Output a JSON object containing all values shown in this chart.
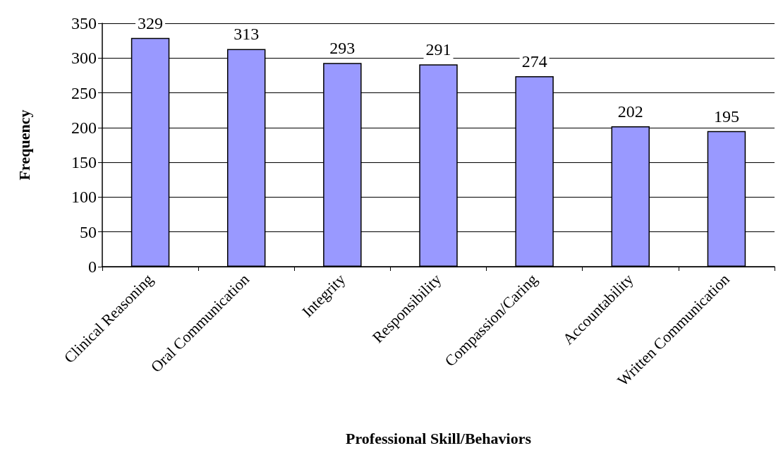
{
  "chart_data": {
    "type": "bar",
    "xlabel": "Professional Skill/Behaviors",
    "ylabel": "Frequency",
    "categories": [
      "Clinical Reasoning",
      "Oral Communication",
      "Integrity",
      "Responsibility",
      "Compassion/Caring",
      "Accountability",
      "Written Communication"
    ],
    "values": [
      329,
      313,
      293,
      291,
      274,
      202,
      195
    ],
    "color": "#9999ff",
    "ylim": [
      0,
      350
    ],
    "yticks": [
      0,
      50,
      100,
      150,
      200,
      250,
      300,
      350
    ],
    "grid": "y",
    "data_labels": true
  }
}
